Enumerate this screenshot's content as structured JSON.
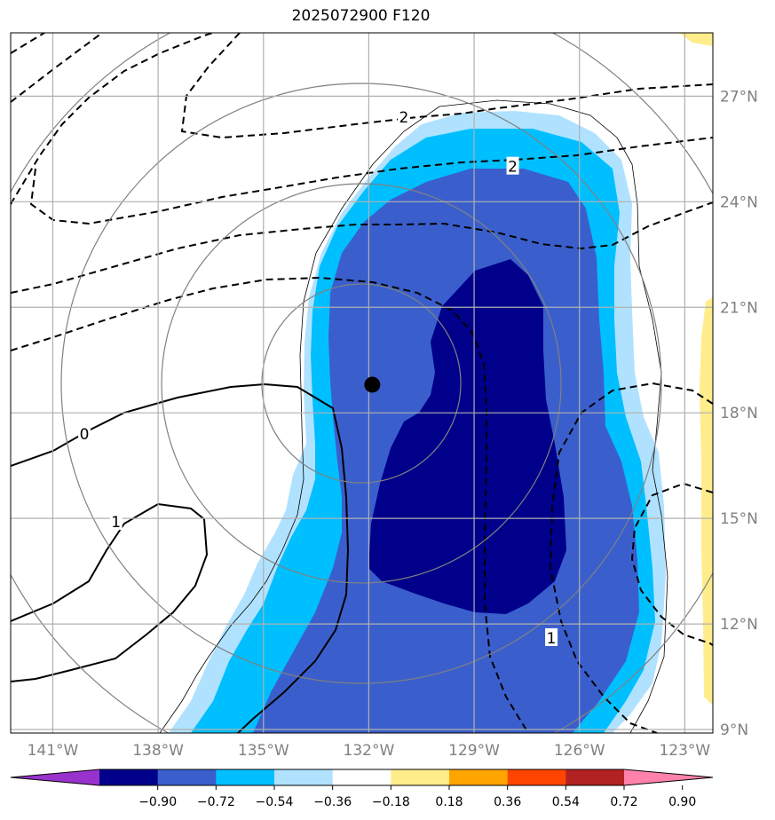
{
  "title": "2025072900 F120",
  "map": {
    "lon_range_deg": [
      -142.2,
      -122.2
    ],
    "lat_range_deg": [
      8.9,
      28.8
    ],
    "lat_ticks": [
      {
        "value": 9,
        "label": "9°N"
      },
      {
        "value": 12,
        "label": "12°N"
      },
      {
        "value": 15,
        "label": "15°N"
      },
      {
        "value": 18,
        "label": "18°N"
      },
      {
        "value": 21,
        "label": "21°N"
      },
      {
        "value": 24,
        "label": "24°N"
      },
      {
        "value": 27,
        "label": "27°N"
      }
    ],
    "lon_ticks": [
      {
        "value": -141,
        "label": "141°W"
      },
      {
        "value": -138,
        "label": "138°W"
      },
      {
        "value": -135,
        "label": "135°W"
      },
      {
        "value": -132,
        "label": "132°W"
      },
      {
        "value": -129,
        "label": "129°W"
      },
      {
        "value": -126,
        "label": "126°W"
      },
      {
        "value": -123,
        "label": "123°W"
      }
    ],
    "storm_center": {
      "lon": -131.9,
      "lat": 18.8
    },
    "contour_labels": [
      {
        "text": "2",
        "lon": -131.0,
        "lat": 26.4
      },
      {
        "text": "2",
        "lon": -127.9,
        "lat": 25.0
      },
      {
        "text": "0",
        "lon": -140.1,
        "lat": 17.4
      },
      {
        "text": "1",
        "lon": -139.2,
        "lat": 14.9
      },
      {
        "text": "1",
        "lon": -126.8,
        "lat": 11.6
      }
    ],
    "grid_color": "#b0b0b0",
    "range_ring_color": "#808080"
  },
  "colorbar": {
    "colors": [
      "#9932cc",
      "#00008b",
      "#3a5fcd",
      "#00bfff",
      "#b0e2ff",
      "#ffffff",
      "#ffec8b",
      "#ffa500",
      "#ff4500",
      "#b22222",
      "#ff82ab"
    ],
    "tick_labels": [
      "−0.90",
      "−0.72",
      "−0.54",
      "−0.36",
      "−0.18",
      "0.18",
      "0.36",
      "0.54",
      "0.72",
      "0.90"
    ]
  }
}
